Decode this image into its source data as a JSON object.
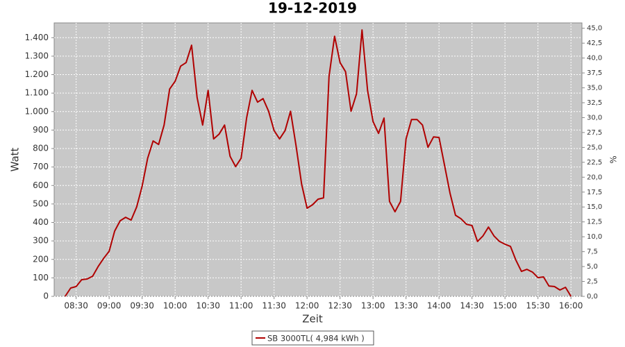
{
  "chart_data": {
    "type": "line",
    "title": "19-12-2019",
    "xlabel": "Zeit",
    "ylabel": "Watt",
    "y2label": "%",
    "x": [
      "08:20",
      "08:25",
      "08:30",
      "08:35",
      "08:40",
      "08:45",
      "08:50",
      "08:55",
      "09:00",
      "09:05",
      "09:10",
      "09:15",
      "09:20",
      "09:25",
      "09:30",
      "09:35",
      "09:40",
      "09:45",
      "09:50",
      "09:55",
      "10:00",
      "10:05",
      "10:10",
      "10:15",
      "10:20",
      "10:25",
      "10:30",
      "10:35",
      "10:40",
      "10:45",
      "10:50",
      "10:55",
      "11:00",
      "11:05",
      "11:10",
      "11:15",
      "11:20",
      "11:25",
      "11:30",
      "11:35",
      "11:40",
      "11:45",
      "11:50",
      "11:55",
      "12:00",
      "12:05",
      "12:10",
      "12:15",
      "12:20",
      "12:25",
      "12:30",
      "12:35",
      "12:40",
      "12:45",
      "12:50",
      "12:55",
      "13:00",
      "13:05",
      "13:10",
      "13:15",
      "13:20",
      "13:25",
      "13:30",
      "13:35",
      "13:40",
      "13:45",
      "13:50",
      "13:55",
      "14:00",
      "14:05",
      "14:10",
      "14:15",
      "14:20",
      "14:25",
      "14:30",
      "14:35",
      "14:40",
      "14:45",
      "14:50",
      "14:55",
      "15:00",
      "15:05",
      "15:10",
      "15:15",
      "15:20",
      "15:25",
      "15:30",
      "15:35",
      "15:40",
      "15:45",
      "15:50",
      "15:55",
      "16:00"
    ],
    "series": [
      {
        "name": "SB 3000TL( 4,984 kWh )",
        "color": "#b00000",
        "values": [
          0,
          45,
          53,
          90,
          94,
          109,
          161,
          206,
          244,
          353,
          409,
          428,
          413,
          484,
          597,
          747,
          841,
          822,
          927,
          1122,
          1164,
          1246,
          1265,
          1359,
          1077,
          927,
          1115,
          852,
          878,
          927,
          758,
          702,
          747,
          965,
          1115,
          1051,
          1070,
          1002,
          897,
          852,
          897,
          1002,
          815,
          608,
          477,
          496,
          526,
          533,
          1190,
          1408,
          1265,
          1216,
          1002,
          1096,
          1442,
          1115,
          946,
          882,
          965,
          514,
          458,
          514,
          852,
          957,
          957,
          927,
          807,
          863,
          860,
          710,
          559,
          439,
          420,
          390,
          383,
          297,
          327,
          375,
          327,
          297,
          282,
          270,
          195,
          135,
          146,
          131,
          101,
          105,
          56,
          53,
          34,
          49,
          0
        ]
      }
    ],
    "xlim": [
      "08:10",
      "16:10"
    ],
    "xticks": [
      "08:30",
      "09:00",
      "09:30",
      "10:00",
      "10:30",
      "11:00",
      "11:30",
      "12:00",
      "12:30",
      "13:00",
      "13:30",
      "14:00",
      "14:30",
      "15:00",
      "15:30",
      "16:00"
    ],
    "ylim": [
      0,
      1480
    ],
    "yticks": [
      0,
      100,
      200,
      300,
      400,
      500,
      600,
      700,
      800,
      900,
      {
        "value": 1000,
        "label": "1.000"
      },
      {
        "value": 1100,
        "label": "1.100"
      },
      {
        "value": 1200,
        "label": "1.200"
      },
      {
        "value": 1300,
        "label": "1.300"
      },
      {
        "value": 1400,
        "label": "1.400"
      }
    ],
    "y2lim": [
      0,
      45.9
    ],
    "y2ticks": [
      {
        "value": 0,
        "label": "0,0"
      },
      {
        "value": 2.5,
        "label": "2,5"
      },
      {
        "value": 5,
        "label": "5,0"
      },
      {
        "value": 7.5,
        "label": "7,5"
      },
      {
        "value": 10,
        "label": "10,0"
      },
      {
        "value": 12.5,
        "label": "12,5"
      },
      {
        "value": 15,
        "label": "15,0"
      },
      {
        "value": 17.5,
        "label": "17,5"
      },
      {
        "value": 20,
        "label": "20,0"
      },
      {
        "value": 22.5,
        "label": "22,5"
      },
      {
        "value": 25,
        "label": "25,0"
      },
      {
        "value": 27.5,
        "label": "27,5"
      },
      {
        "value": 30,
        "label": "30,0"
      },
      {
        "value": 32.5,
        "label": "32,5"
      },
      {
        "value": 35,
        "label": "35,0"
      },
      {
        "value": 37.5,
        "label": "37,5"
      },
      {
        "value": 40,
        "label": "40,0"
      },
      {
        "value": 42.5,
        "label": "42,5"
      },
      {
        "value": 45,
        "label": "45,0"
      }
    ],
    "grid": true,
    "legend": "bottom"
  }
}
